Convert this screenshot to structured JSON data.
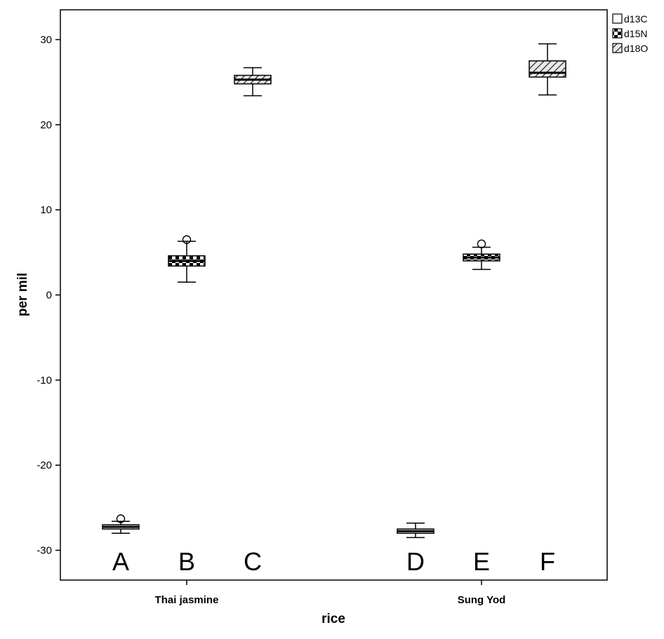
{
  "chart_data": {
    "type": "box",
    "xlabel": "rice",
    "ylabel": "per mil",
    "ylim": [
      -33.5,
      33.5
    ],
    "yticks": [
      -30,
      -20,
      -10,
      0,
      10,
      20,
      30
    ],
    "categories": [
      "Thai jasmine",
      "Sung Yod"
    ],
    "series": [
      {
        "name": "d13C",
        "fill": "white",
        "boxes": [
          {
            "category": "Thai jasmine",
            "letter": "A",
            "whisker_low": -28.0,
            "q1": -27.5,
            "median": -27.25,
            "q3": -27.0,
            "whisker_high": -26.6,
            "outliers": [
              -26.3
            ]
          },
          {
            "category": "Sung Yod",
            "letter": "D",
            "whisker_low": -28.5,
            "q1": -28.0,
            "median": -27.75,
            "q3": -27.5,
            "whisker_high": -26.8,
            "outliers": []
          }
        ]
      },
      {
        "name": "d15N",
        "fill": "checker",
        "boxes": [
          {
            "category": "Thai jasmine",
            "letter": "B",
            "whisker_low": 1.5,
            "q1": 3.4,
            "median": 4.0,
            "q3": 4.6,
            "whisker_high": 6.3,
            "outliers": [
              6.5
            ]
          },
          {
            "category": "Sung Yod",
            "letter": "E",
            "whisker_low": 3.0,
            "q1": 4.0,
            "median": 4.4,
            "q3": 4.8,
            "whisker_high": 5.6,
            "outliers": [
              6.0
            ]
          }
        ]
      },
      {
        "name": "d18O",
        "fill": "hatch",
        "boxes": [
          {
            "category": "Thai jasmine",
            "letter": "C",
            "whisker_low": 23.4,
            "q1": 24.8,
            "median": 25.3,
            "q3": 25.8,
            "whisker_high": 26.7,
            "outliers": []
          },
          {
            "category": "Sung Yod",
            "letter": "F",
            "whisker_low": 23.5,
            "q1": 25.6,
            "median": 26.1,
            "q3": 27.5,
            "whisker_high": 29.5,
            "outliers": []
          }
        ]
      }
    ],
    "legend": {
      "position": "top-right",
      "entries": [
        "d13C",
        "d15N",
        "d18O"
      ]
    }
  }
}
